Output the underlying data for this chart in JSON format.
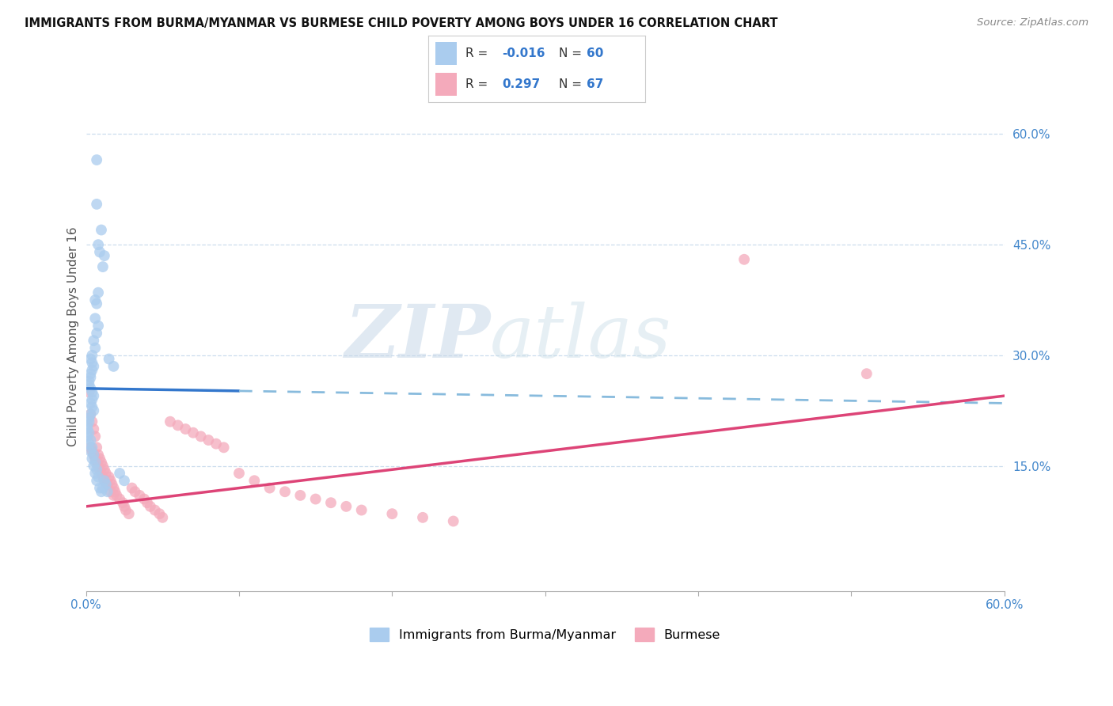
{
  "title": "IMMIGRANTS FROM BURMA/MYANMAR VS BURMESE CHILD POVERTY AMONG BOYS UNDER 16 CORRELATION CHART",
  "source": "Source: ZipAtlas.com",
  "ylabel": "Child Poverty Among Boys Under 16",
  "legend_label1": "Immigrants from Burma/Myanmar",
  "legend_label2": "Burmese",
  "R1": "-0.016",
  "N1": "60",
  "R2": "0.297",
  "N2": "67",
  "color_blue": "#aaccee",
  "color_pink": "#f4aabb",
  "color_blue_line": "#3377cc",
  "color_pink_line": "#dd4477",
  "color_blue_dash": "#88bbdd",
  "background": "#ffffff",
  "grid_color": "#ccddee",
  "xlim": [
    0.0,
    0.6
  ],
  "ylim": [
    -0.02,
    0.67
  ],
  "watermark_zip": "ZIP",
  "watermark_atlas": "atlas",
  "blue_line_solid_end": 0.1,
  "blue_line_start_y": 0.255,
  "blue_line_end_y": 0.235,
  "pink_line_start_y": 0.095,
  "pink_line_end_y": 0.245,
  "blue_x": [
    0.007,
    0.007,
    0.01,
    0.008,
    0.009,
    0.012,
    0.011,
    0.008,
    0.006,
    0.007,
    0.006,
    0.008,
    0.007,
    0.005,
    0.006,
    0.004,
    0.003,
    0.004,
    0.005,
    0.004,
    0.003,
    0.003,
    0.002,
    0.002,
    0.003,
    0.004,
    0.005,
    0.004,
    0.003,
    0.004,
    0.005,
    0.003,
    0.002,
    0.002,
    0.001,
    0.001,
    0.002,
    0.001,
    0.003,
    0.002,
    0.004,
    0.003,
    0.005,
    0.004,
    0.006,
    0.005,
    0.007,
    0.006,
    0.008,
    0.007,
    0.015,
    0.018,
    0.022,
    0.025,
    0.009,
    0.01,
    0.012,
    0.013,
    0.011,
    0.014
  ],
  "blue_y": [
    0.565,
    0.505,
    0.47,
    0.45,
    0.44,
    0.435,
    0.42,
    0.385,
    0.375,
    0.37,
    0.35,
    0.34,
    0.33,
    0.32,
    0.31,
    0.3,
    0.295,
    0.29,
    0.285,
    0.28,
    0.275,
    0.27,
    0.265,
    0.26,
    0.255,
    0.25,
    0.245,
    0.24,
    0.235,
    0.23,
    0.225,
    0.22,
    0.215,
    0.21,
    0.205,
    0.2,
    0.195,
    0.19,
    0.185,
    0.18,
    0.175,
    0.17,
    0.165,
    0.16,
    0.155,
    0.15,
    0.145,
    0.14,
    0.135,
    0.13,
    0.295,
    0.285,
    0.14,
    0.13,
    0.12,
    0.115,
    0.13,
    0.125,
    0.12,
    0.115
  ],
  "pink_x": [
    0.002,
    0.003,
    0.004,
    0.005,
    0.006,
    0.007,
    0.008,
    0.009,
    0.01,
    0.011,
    0.012,
    0.013,
    0.015,
    0.016,
    0.017,
    0.018,
    0.019,
    0.02,
    0.022,
    0.024,
    0.025,
    0.026,
    0.028,
    0.03,
    0.032,
    0.035,
    0.038,
    0.04,
    0.042,
    0.045,
    0.048,
    0.05,
    0.003,
    0.004,
    0.005,
    0.006,
    0.007,
    0.008,
    0.009,
    0.01,
    0.011,
    0.012,
    0.014,
    0.016,
    0.018,
    0.055,
    0.06,
    0.065,
    0.07,
    0.075,
    0.08,
    0.085,
    0.09,
    0.1,
    0.11,
    0.12,
    0.13,
    0.14,
    0.15,
    0.16,
    0.17,
    0.18,
    0.2,
    0.22,
    0.24,
    0.43,
    0.51
  ],
  "pink_y": [
    0.25,
    0.22,
    0.21,
    0.2,
    0.19,
    0.175,
    0.165,
    0.16,
    0.155,
    0.15,
    0.145,
    0.14,
    0.135,
    0.13,
    0.125,
    0.12,
    0.115,
    0.11,
    0.105,
    0.1,
    0.095,
    0.09,
    0.085,
    0.12,
    0.115,
    0.11,
    0.105,
    0.1,
    0.095,
    0.09,
    0.085,
    0.08,
    0.175,
    0.17,
    0.165,
    0.16,
    0.155,
    0.15,
    0.145,
    0.14,
    0.135,
    0.13,
    0.125,
    0.115,
    0.11,
    0.21,
    0.205,
    0.2,
    0.195,
    0.19,
    0.185,
    0.18,
    0.175,
    0.14,
    0.13,
    0.12,
    0.115,
    0.11,
    0.105,
    0.1,
    0.095,
    0.09,
    0.085,
    0.08,
    0.075,
    0.43,
    0.275
  ]
}
